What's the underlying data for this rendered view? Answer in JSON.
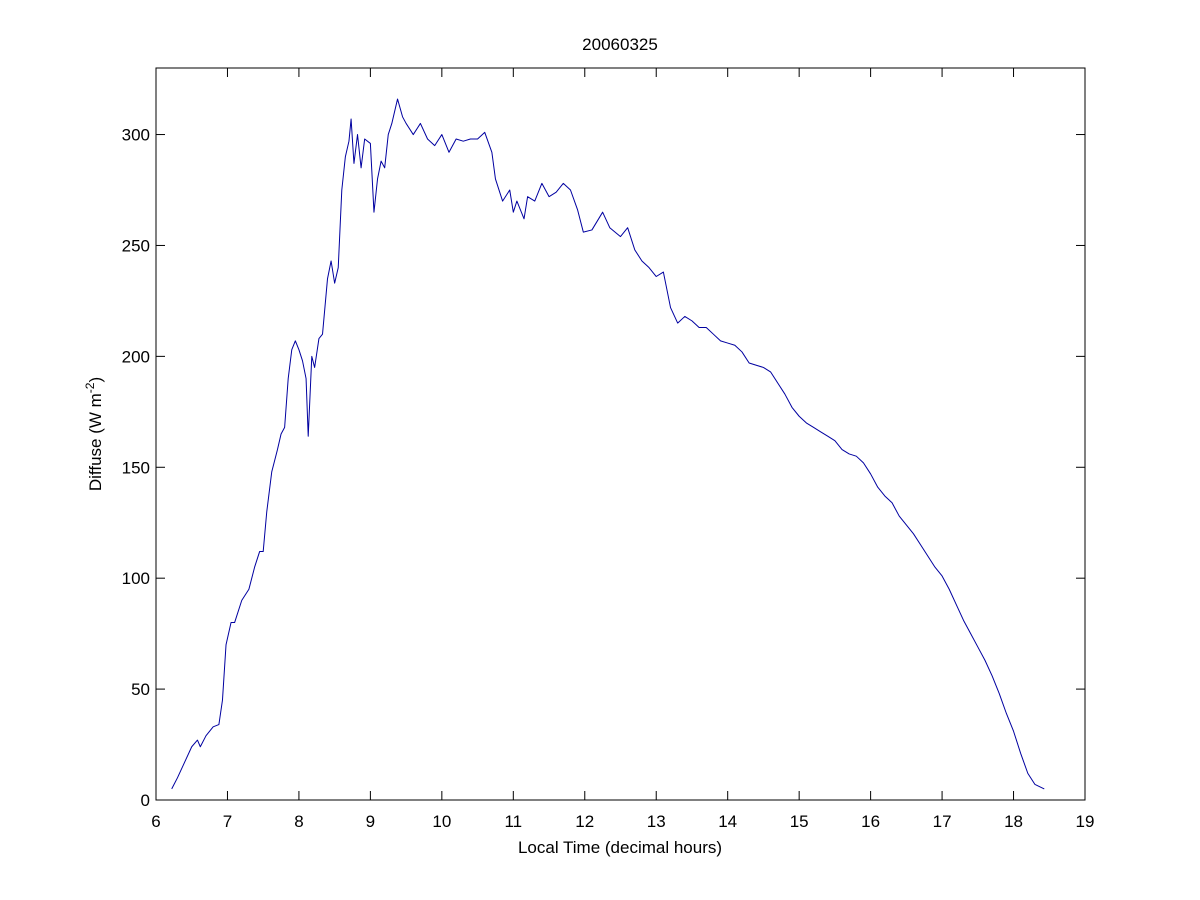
{
  "chart_data": {
    "type": "line",
    "title": "20060325",
    "xlabel": "Local Time (decimal hours)",
    "ylabel": {
      "text": "Diffuse (W m",
      "superscript": "-2",
      "suffix": ")"
    },
    "xlim": [
      6,
      19
    ],
    "xticks": [
      6,
      7,
      8,
      9,
      10,
      11,
      12,
      13,
      14,
      15,
      16,
      17,
      18,
      19
    ],
    "ylim": [
      0,
      330
    ],
    "yticks": [
      0,
      50,
      100,
      150,
      200,
      250,
      300
    ],
    "grid": false,
    "x": [
      6.22,
      6.3,
      6.4,
      6.5,
      6.58,
      6.62,
      6.7,
      6.8,
      6.88,
      6.93,
      6.98,
      7.05,
      7.1,
      7.2,
      7.3,
      7.38,
      7.45,
      7.5,
      7.55,
      7.62,
      7.7,
      7.75,
      7.8,
      7.85,
      7.9,
      7.95,
      8.0,
      8.05,
      8.1,
      8.13,
      8.18,
      8.22,
      8.28,
      8.33,
      8.4,
      8.45,
      8.5,
      8.55,
      8.6,
      8.65,
      8.7,
      8.73,
      8.77,
      8.82,
      8.87,
      8.92,
      9.0,
      9.05,
      9.1,
      9.15,
      9.2,
      9.25,
      9.3,
      9.38,
      9.45,
      9.5,
      9.6,
      9.7,
      9.8,
      9.9,
      10.0,
      10.1,
      10.2,
      10.3,
      10.4,
      10.5,
      10.6,
      10.7,
      10.75,
      10.85,
      10.95,
      11.0,
      11.05,
      11.15,
      11.2,
      11.3,
      11.4,
      11.5,
      11.6,
      11.7,
      11.8,
      11.9,
      11.98,
      12.1,
      12.25,
      12.35,
      12.5,
      12.6,
      12.7,
      12.8,
      12.9,
      13.0,
      13.1,
      13.15,
      13.2,
      13.3,
      13.4,
      13.5,
      13.6,
      13.7,
      13.8,
      13.9,
      14.0,
      14.1,
      14.2,
      14.3,
      14.4,
      14.5,
      14.6,
      14.7,
      14.8,
      14.9,
      15.0,
      15.1,
      15.2,
      15.3,
      15.4,
      15.5,
      15.6,
      15.7,
      15.8,
      15.9,
      16.0,
      16.1,
      16.2,
      16.3,
      16.4,
      16.5,
      16.6,
      16.7,
      16.8,
      16.9,
      17.0,
      17.1,
      17.2,
      17.3,
      17.4,
      17.5,
      17.6,
      17.7,
      17.8,
      17.9,
      18.0,
      18.1,
      18.2,
      18.3,
      18.43
    ],
    "series": [
      {
        "color": "#0000a0",
        "values": [
          5,
          10,
          17,
          24,
          27,
          24,
          29,
          33,
          34,
          45,
          70,
          80,
          80,
          90,
          95,
          105,
          112,
          112,
          130,
          148,
          158,
          165,
          168,
          190,
          203,
          207,
          203,
          198,
          190,
          164,
          200,
          195,
          208,
          210,
          235,
          243,
          233,
          240,
          275,
          290,
          297,
          307,
          287,
          300,
          285,
          298,
          296,
          265,
          280,
          288,
          285,
          300,
          305,
          316,
          308,
          305,
          300,
          305,
          298,
          295,
          300,
          292,
          298,
          297,
          298,
          298,
          301,
          292,
          280,
          270,
          275,
          265,
          270,
          262,
          272,
          270,
          278,
          272,
          274,
          278,
          275,
          266,
          256,
          257,
          265,
          258,
          254,
          258,
          248,
          243,
          240,
          236,
          238,
          230,
          222,
          215,
          218,
          216,
          213,
          213,
          210,
          207,
          206,
          205,
          202,
          197,
          196,
          195,
          193,
          188,
          183,
          177,
          173,
          170,
          168,
          166,
          164,
          162,
          158,
          156,
          155,
          152,
          147,
          141,
          137,
          134,
          128,
          124,
          120,
          115,
          110,
          105,
          101,
          95,
          88,
          81,
          75,
          69,
          63,
          56,
          48,
          39,
          31,
          21,
          12,
          7,
          5
        ]
      }
    ]
  }
}
